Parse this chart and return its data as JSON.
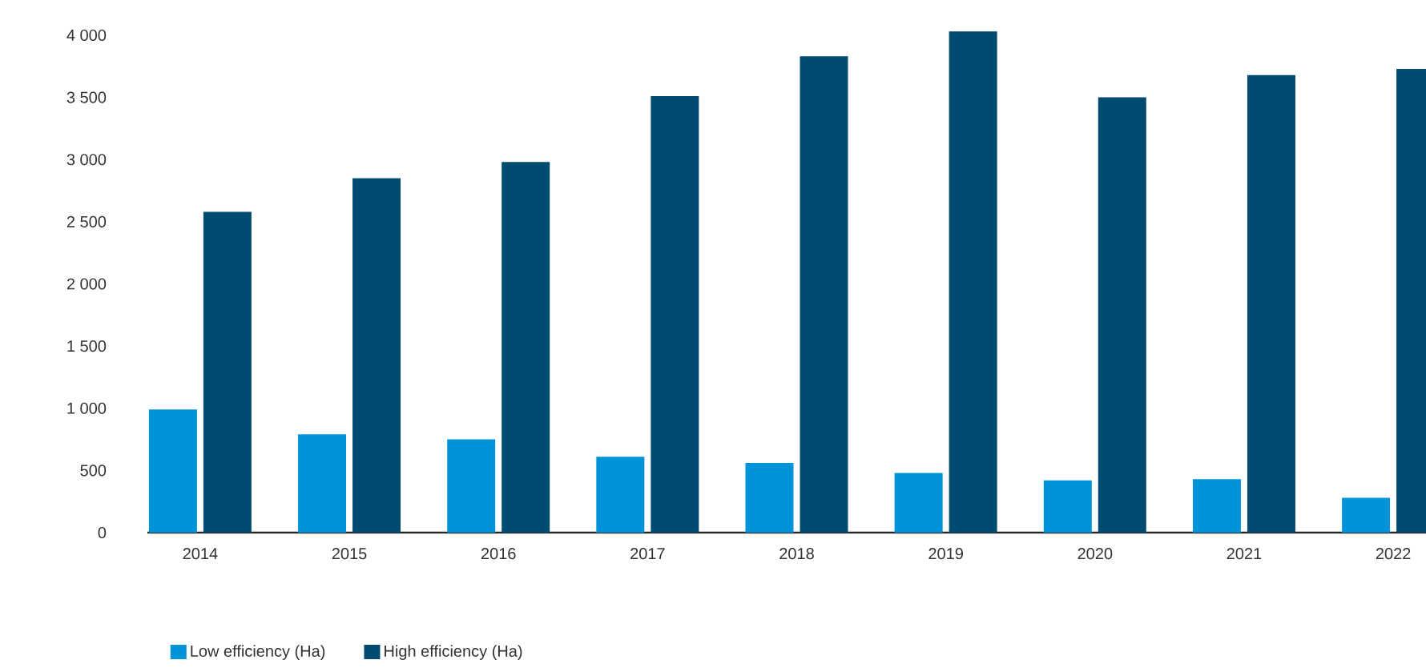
{
  "chart_data": {
    "type": "bar",
    "categories": [
      "2014",
      "2015",
      "2016",
      "2017",
      "2018",
      "2019",
      "2020",
      "2021",
      "2022"
    ],
    "series": [
      {
        "name": "Low efficiency (Ha)",
        "color": "#0093d8",
        "values": [
          990,
          790,
          750,
          610,
          560,
          480,
          420,
          430,
          280
        ]
      },
      {
        "name": "High efficiency (Ha)",
        "color": "#004b70",
        "values": [
          2580,
          2850,
          2980,
          3510,
          3830,
          4030,
          3500,
          3680,
          3730
        ]
      }
    ],
    "ylim": [
      0,
      4050
    ],
    "yticks": [
      0,
      500,
      {
        "value": 1000,
        "label": "1 000"
      },
      {
        "value": 1500,
        "label": "1 500"
      },
      {
        "value": 2000,
        "label": "2 000"
      },
      {
        "value": 2500,
        "label": "2 500"
      },
      {
        "value": 3000,
        "label": "3 000"
      },
      {
        "value": 3500,
        "label": "3 500"
      },
      {
        "value": 4000,
        "label": "4 000"
      }
    ],
    "legend": "bottom"
  }
}
